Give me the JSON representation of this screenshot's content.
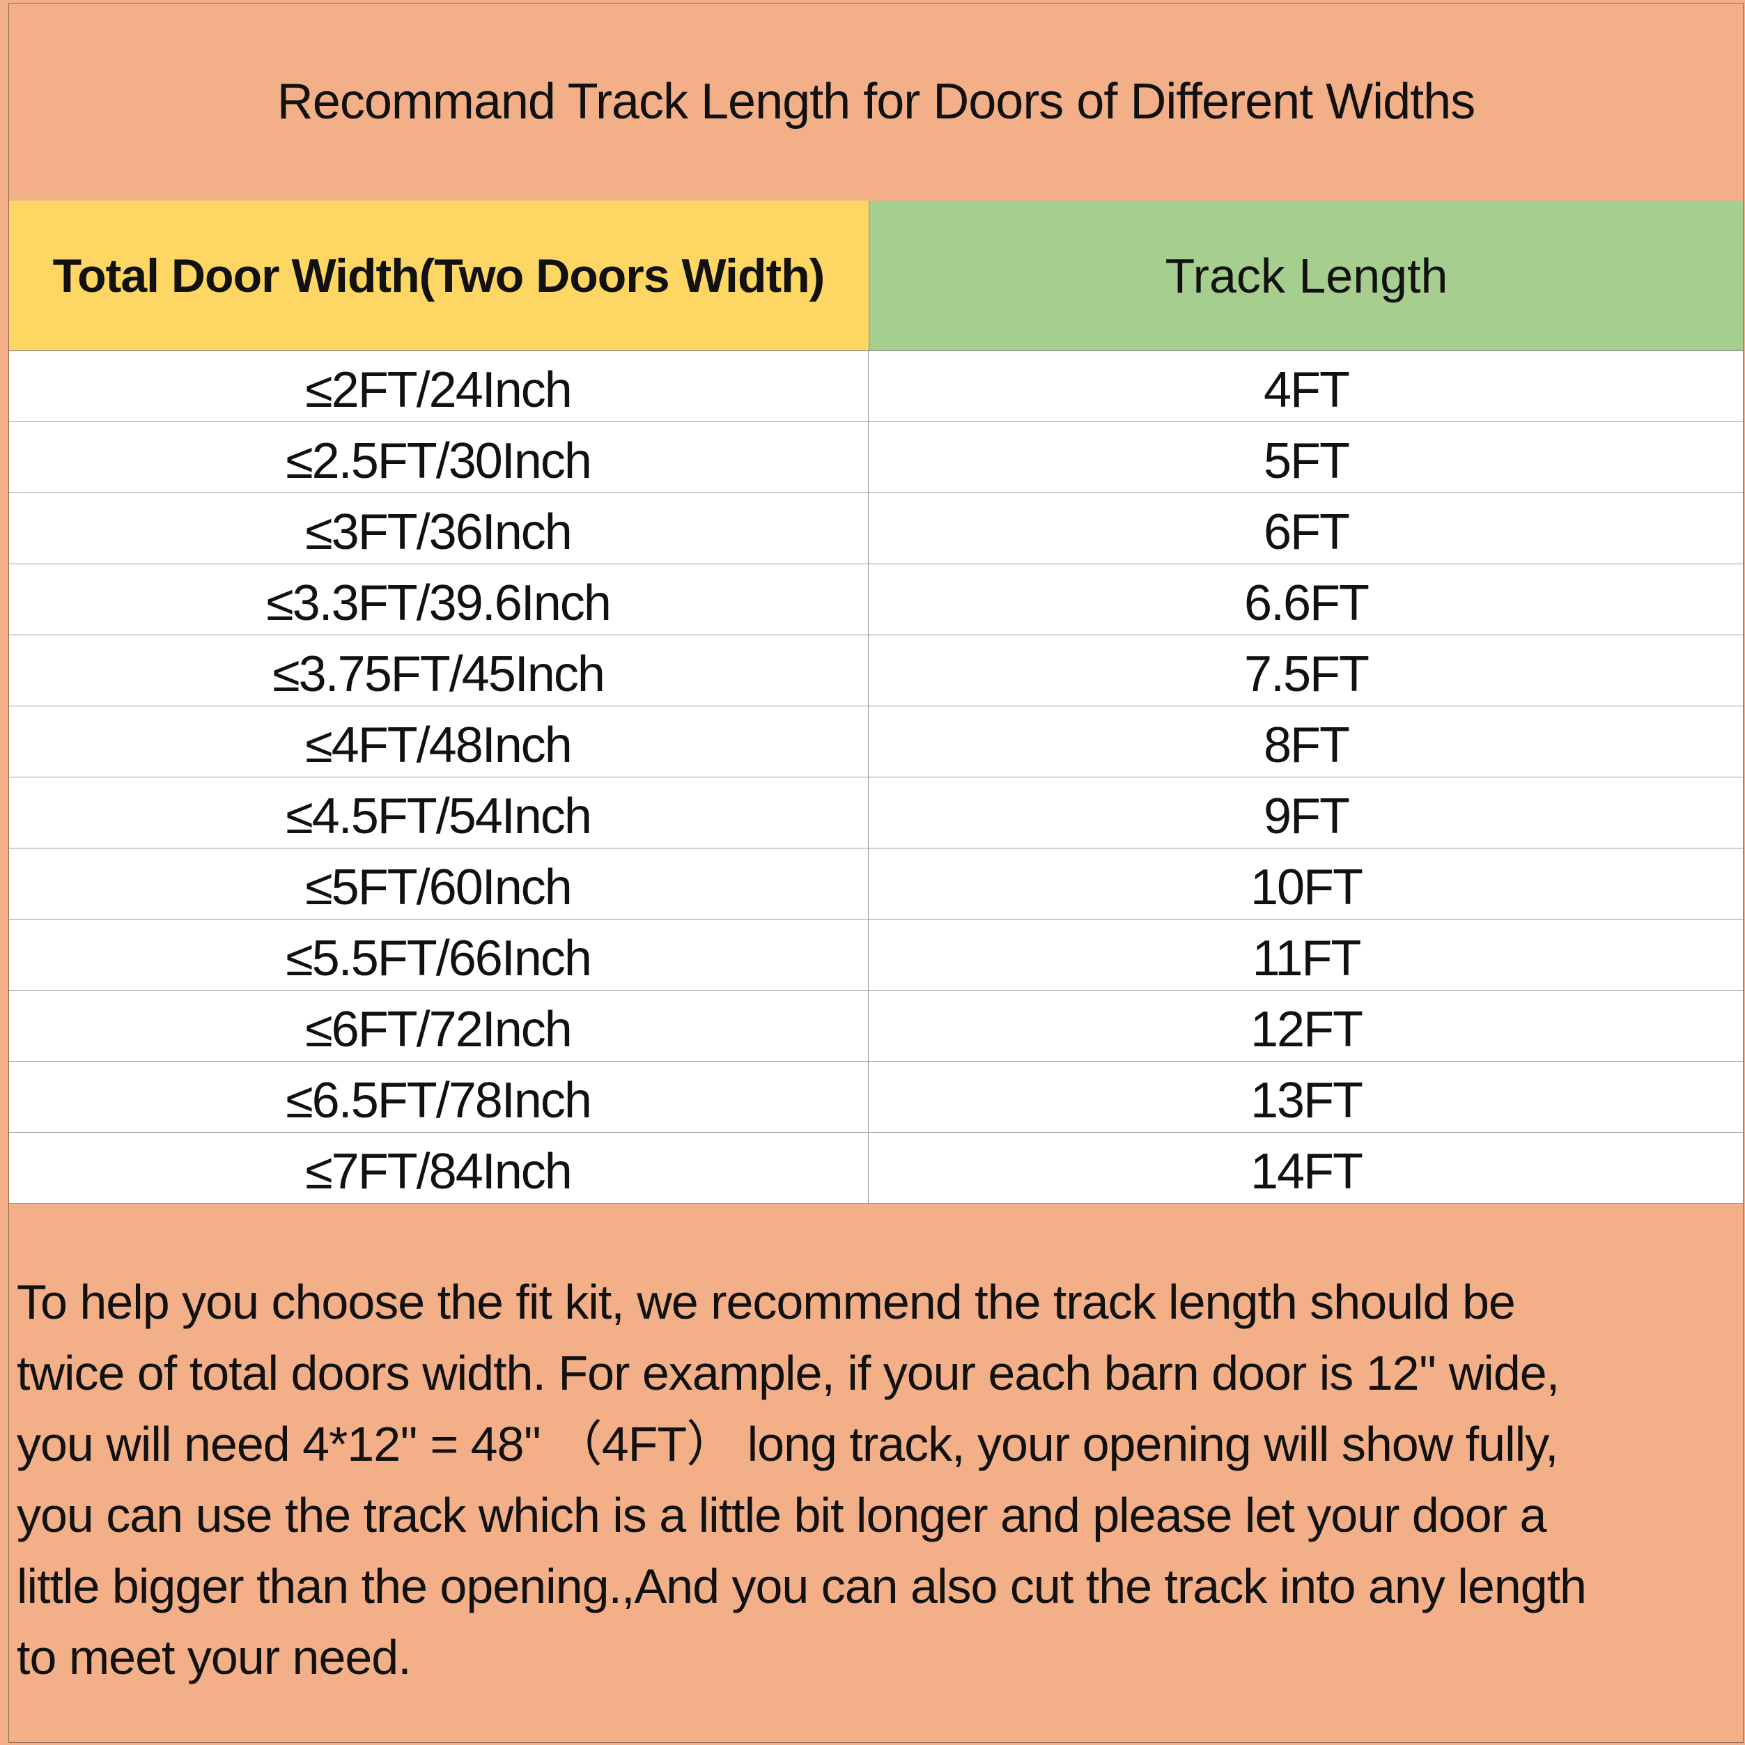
{
  "title": "Recommand Track Length for Doors of  Different Widths",
  "colors": {
    "title_bg": "#f3b088",
    "header_left_bg": "#fdd663",
    "header_right_bg": "#a6ce8e",
    "note_bg": "#f3b088"
  },
  "table": {
    "headers": [
      "Total Door Width(Two Doors Width)",
      "Track Length"
    ],
    "rows": [
      [
        "≤2FT/24Inch",
        "4FT"
      ],
      [
        "≤2.5FT/30Inch",
        "5FT"
      ],
      [
        "≤3FT/36Inch",
        "6FT"
      ],
      [
        "≤3.3FT/39.6Inch",
        "6.6FT"
      ],
      [
        "≤3.75FT/45Inch",
        "7.5FT"
      ],
      [
        "≤4FT/48Inch",
        "8FT"
      ],
      [
        "≤4.5FT/54Inch",
        "9FT"
      ],
      [
        "≤5FT/60Inch",
        "10FT"
      ],
      [
        "≤5.5FT/66Inch",
        "11FT"
      ],
      [
        "≤6FT/72Inch",
        "12FT"
      ],
      [
        "≤6.5FT/78Inch",
        "13FT"
      ],
      [
        "≤7FT/84Inch",
        "14FT"
      ]
    ]
  },
  "note": {
    "lines": [
      "To help you choose the fit kit, we recommend the track length should be",
      "twice of total doors width. For example, if your each barn door is 12'' wide,",
      "you will need 4*12'' = 48''  （4FT）  long track, your opening will show fully,",
      "you can use the track which is a little bit longer and please let your door a",
      "little bigger than the opening.,And you can also cut the track into any length",
      "to meet your need."
    ]
  }
}
